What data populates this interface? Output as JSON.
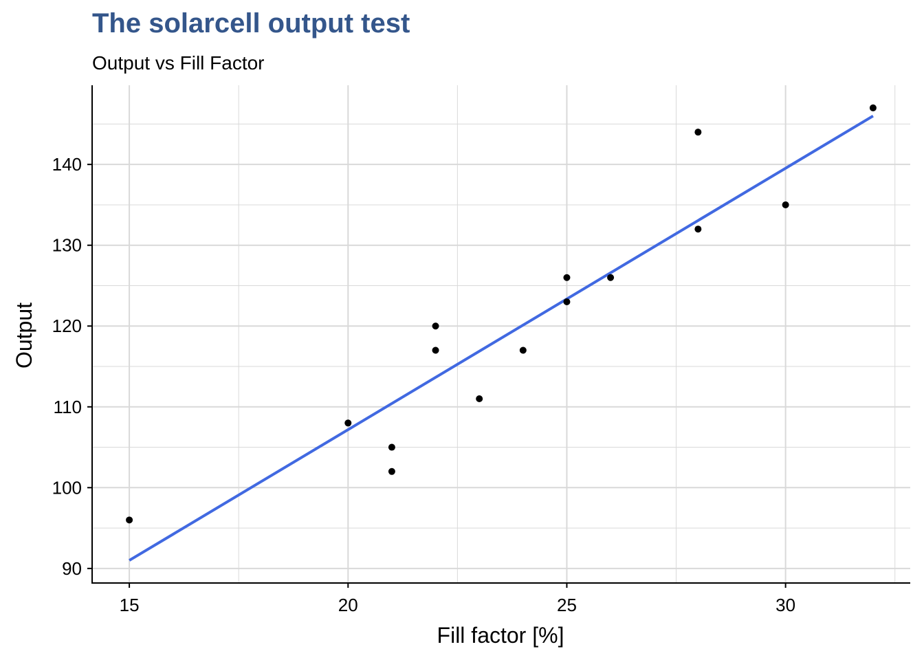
{
  "chart_data": {
    "type": "scatter",
    "title": "The solarcell output test",
    "subtitle": "Output vs Fill Factor",
    "xlabel": "Fill factor [%]",
    "ylabel": "Output",
    "xlim": [
      14.15,
      32.85
    ],
    "ylim": [
      88.2,
      149.8
    ],
    "xticks": [
      15,
      20,
      25,
      30
    ],
    "yticks": [
      90,
      100,
      110,
      120,
      130,
      140
    ],
    "grid": true,
    "points": [
      {
        "x": 15,
        "y": 96
      },
      {
        "x": 20,
        "y": 108
      },
      {
        "x": 21,
        "y": 105
      },
      {
        "x": 21,
        "y": 102
      },
      {
        "x": 22,
        "y": 120
      },
      {
        "x": 22,
        "y": 117
      },
      {
        "x": 23,
        "y": 111
      },
      {
        "x": 24,
        "y": 117
      },
      {
        "x": 25,
        "y": 126
      },
      {
        "x": 25,
        "y": 123
      },
      {
        "x": 26,
        "y": 126
      },
      {
        "x": 28,
        "y": 144
      },
      {
        "x": 28,
        "y": 132
      },
      {
        "x": 30,
        "y": 135
      },
      {
        "x": 32,
        "y": 147
      }
    ],
    "fit_line": {
      "x": [
        15,
        32
      ],
      "y": [
        91.0,
        146.0
      ]
    },
    "colors": {
      "title": "#34568b",
      "points": "#000000",
      "fit_line": "#4169e1",
      "grid": "#d9d9d9",
      "axis": "#000000"
    }
  }
}
